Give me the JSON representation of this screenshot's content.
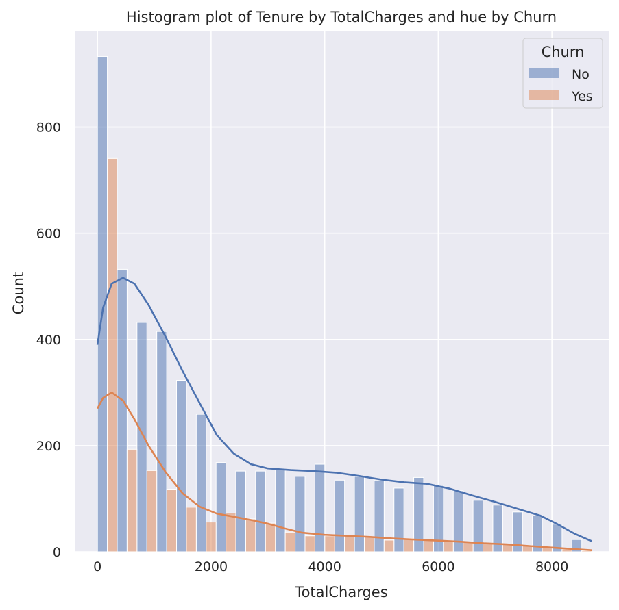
{
  "chart_data": {
    "type": "bar",
    "title": "Histogram plot of Tenure by TotalCharges and hue by Churn",
    "xlabel": "TotalCharges",
    "ylabel": "Count",
    "xlim": [
      -400,
      9000
    ],
    "ylim": [
      0,
      980
    ],
    "xticks": [
      0,
      2000,
      4000,
      6000,
      8000
    ],
    "yticks": [
      0,
      200,
      400,
      600,
      800
    ],
    "grid": true,
    "legend": {
      "title": "Churn",
      "placement": "top-right"
    },
    "bin_edges": [
      0,
      348,
      696,
      1044,
      1392,
      1740,
      2088,
      2436,
      2784,
      3132,
      3480,
      3828,
      4176,
      4524,
      4872,
      5220,
      5568,
      5916,
      6264,
      6612,
      6960,
      7308,
      7656,
      8004,
      8352,
      8700
    ],
    "series": [
      {
        "name": "No",
        "color": "#4c72b0",
        "values": [
          933,
          532,
          432,
          415,
          323,
          259,
          168,
          152,
          152,
          155,
          142,
          165,
          135,
          142,
          135,
          120,
          140,
          125,
          115,
          97,
          88,
          75,
          68,
          52,
          23
        ],
        "kde": [
          [
            0,
            390
          ],
          [
            100,
            460
          ],
          [
            250,
            505
          ],
          [
            450,
            516
          ],
          [
            650,
            505
          ],
          [
            900,
            465
          ],
          [
            1200,
            405
          ],
          [
            1500,
            340
          ],
          [
            1800,
            280
          ],
          [
            2100,
            220
          ],
          [
            2400,
            185
          ],
          [
            2700,
            165
          ],
          [
            3000,
            157
          ],
          [
            3400,
            154
          ],
          [
            3800,
            152
          ],
          [
            4200,
            149
          ],
          [
            4600,
            143
          ],
          [
            5000,
            136
          ],
          [
            5400,
            131
          ],
          [
            5800,
            128
          ],
          [
            6200,
            119
          ],
          [
            6600,
            106
          ],
          [
            7000,
            94
          ],
          [
            7400,
            81
          ],
          [
            7800,
            68
          ],
          [
            8100,
            52
          ],
          [
            8400,
            34
          ],
          [
            8700,
            20
          ]
        ]
      },
      {
        "name": "Yes",
        "color": "#dd8452",
        "values": [
          741,
          193,
          153,
          118,
          84,
          56,
          73,
          62,
          54,
          37,
          30,
          30,
          30,
          28,
          22,
          25,
          22,
          20,
          18,
          15,
          14,
          12,
          8,
          5,
          2
        ],
        "kde": [
          [
            0,
            270
          ],
          [
            100,
            290
          ],
          [
            250,
            300
          ],
          [
            450,
            285
          ],
          [
            650,
            250
          ],
          [
            900,
            200
          ],
          [
            1200,
            150
          ],
          [
            1500,
            110
          ],
          [
            1800,
            85
          ],
          [
            2100,
            72
          ],
          [
            2400,
            66
          ],
          [
            2700,
            60
          ],
          [
            3000,
            53
          ],
          [
            3300,
            44
          ],
          [
            3600,
            36
          ],
          [
            4000,
            32
          ],
          [
            4400,
            30
          ],
          [
            4800,
            28
          ],
          [
            5200,
            25
          ],
          [
            5600,
            23
          ],
          [
            6000,
            21
          ],
          [
            6400,
            19
          ],
          [
            6800,
            16
          ],
          [
            7200,
            14
          ],
          [
            7600,
            11
          ],
          [
            8000,
            8
          ],
          [
            8400,
            5
          ],
          [
            8700,
            3
          ]
        ]
      }
    ]
  }
}
